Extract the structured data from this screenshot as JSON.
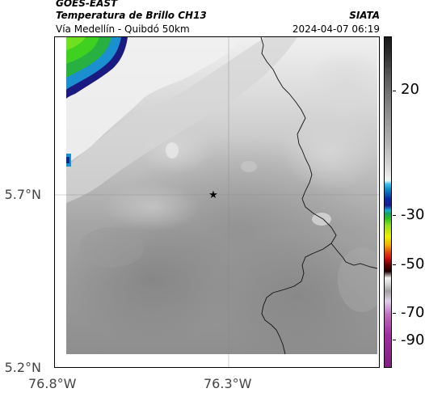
{
  "header": {
    "product": "GOES-EAST",
    "channel": "Temperatura de Brillo CH13",
    "location": "Vía Medellín - Quibdó 50km",
    "organization": "SIATA",
    "datetime": "2024-04-07 06:19"
  },
  "map": {
    "y_ticks": [
      "5.7°N",
      "5.2°N"
    ],
    "x_ticks": [
      "76.8°W",
      "76.3°W"
    ],
    "marker_icon": "star-icon"
  },
  "colorbar": {
    "ticks": [
      "20",
      "-30",
      "-50",
      "-70",
      "-90"
    ]
  }
}
